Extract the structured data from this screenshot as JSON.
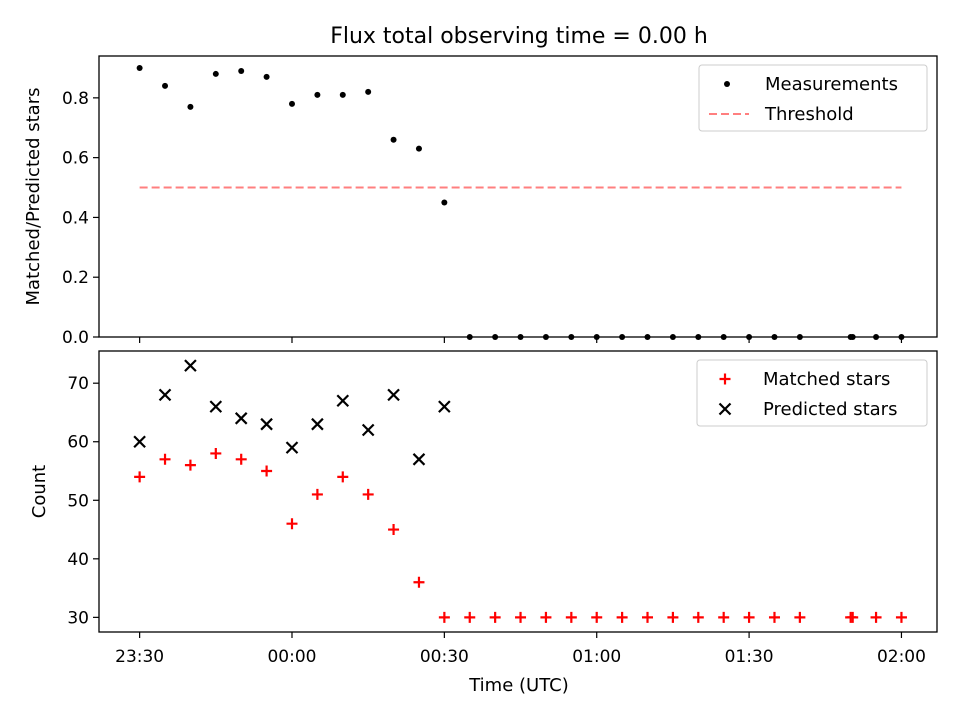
{
  "chart_data": {
    "type": "scatter",
    "title": "Flux total observing time = 0.00 h",
    "xlabel": "Time (UTC)",
    "x_ticks": [
      "23:30",
      "00:00",
      "00:30",
      "01:00",
      "01:30",
      "02:00"
    ],
    "x_tick_minutes": [
      0,
      30,
      60,
      90,
      120,
      150
    ],
    "xlim_minutes": [
      -8,
      157
    ],
    "x_unit_note": "",
    "panels": [
      {
        "id": "ratio",
        "ylabel": "Matched/Predicted stars",
        "ylim": [
          0,
          0.94
        ],
        "y_ticks": [
          "0.0",
          "0.2",
          "0.4",
          "0.6",
          "0.8"
        ],
        "y_tick_values": [
          0,
          0.2,
          0.4,
          0.6,
          0.8
        ],
        "legend_position": "top-right",
        "series": [
          {
            "name": "Measurements",
            "marker": "dot",
            "color": "#000000",
            "points": [
              [
                0,
                0.9
              ],
              [
                5,
                0.84
              ],
              [
                10,
                0.77
              ],
              [
                15,
                0.88
              ],
              [
                20,
                0.89
              ],
              [
                25,
                0.87
              ],
              [
                30,
                0.78
              ],
              [
                35,
                0.81
              ],
              [
                40,
                0.81
              ],
              [
                45,
                0.82
              ],
              [
                50,
                0.66
              ],
              [
                55,
                0.63
              ],
              [
                60,
                0.45
              ],
              [
                65,
                0.0
              ],
              [
                70,
                0.0
              ],
              [
                75,
                0.0
              ],
              [
                80,
                0.0
              ],
              [
                85,
                0.0
              ],
              [
                90,
                0.0
              ],
              [
                95,
                0.0
              ],
              [
                100,
                0.0
              ],
              [
                105,
                0.0
              ],
              [
                110,
                0.0
              ],
              [
                115,
                0.0
              ],
              [
                120,
                0.0
              ],
              [
                125,
                0.0
              ],
              [
                130,
                0.0
              ],
              [
                140,
                0.0
              ],
              [
                140.4,
                0.0
              ],
              [
                145,
                0.0
              ],
              [
                150,
                0.0
              ]
            ]
          },
          {
            "name": "Threshold",
            "marker": "dashed-line",
            "color": "#ff7f7f",
            "points": [
              [
                0,
                0.5
              ],
              [
                150,
                0.5
              ]
            ]
          }
        ]
      },
      {
        "id": "counts",
        "ylabel": "Count",
        "ylim": [
          27.5,
          75.5
        ],
        "y_ticks": [
          "30",
          "40",
          "50",
          "60",
          "70"
        ],
        "y_tick_values": [
          30,
          40,
          50,
          60,
          70
        ],
        "legend_position": "top-right",
        "series": [
          {
            "name": "Matched stars",
            "marker": "plus",
            "color": "#ff0000",
            "points": [
              [
                0,
                54
              ],
              [
                5,
                57
              ],
              [
                10,
                56
              ],
              [
                15,
                58
              ],
              [
                20,
                57
              ],
              [
                25,
                55
              ],
              [
                30,
                46
              ],
              [
                35,
                51
              ],
              [
                40,
                54
              ],
              [
                45,
                51
              ],
              [
                50,
                45
              ],
              [
                55,
                36
              ],
              [
                60,
                30
              ],
              [
                65,
                30
              ],
              [
                70,
                30
              ],
              [
                75,
                30
              ],
              [
                80,
                30
              ],
              [
                85,
                30
              ],
              [
                90,
                30
              ],
              [
                95,
                30
              ],
              [
                100,
                30
              ],
              [
                105,
                30
              ],
              [
                110,
                30
              ],
              [
                115,
                30
              ],
              [
                120,
                30
              ],
              [
                125,
                30
              ],
              [
                130,
                30
              ],
              [
                140,
                30
              ],
              [
                140.4,
                30
              ],
              [
                145,
                30
              ],
              [
                150,
                30
              ]
            ]
          },
          {
            "name": "Predicted stars",
            "marker": "x",
            "color": "#000000",
            "points": [
              [
                0,
                60
              ],
              [
                5,
                68
              ],
              [
                10,
                73
              ],
              [
                15,
                66
              ],
              [
                20,
                64
              ],
              [
                25,
                63
              ],
              [
                30,
                59
              ],
              [
                35,
                63
              ],
              [
                40,
                67
              ],
              [
                45,
                62
              ],
              [
                50,
                68
              ],
              [
                55,
                57
              ],
              [
                60,
                66
              ]
            ]
          }
        ]
      }
    ]
  }
}
